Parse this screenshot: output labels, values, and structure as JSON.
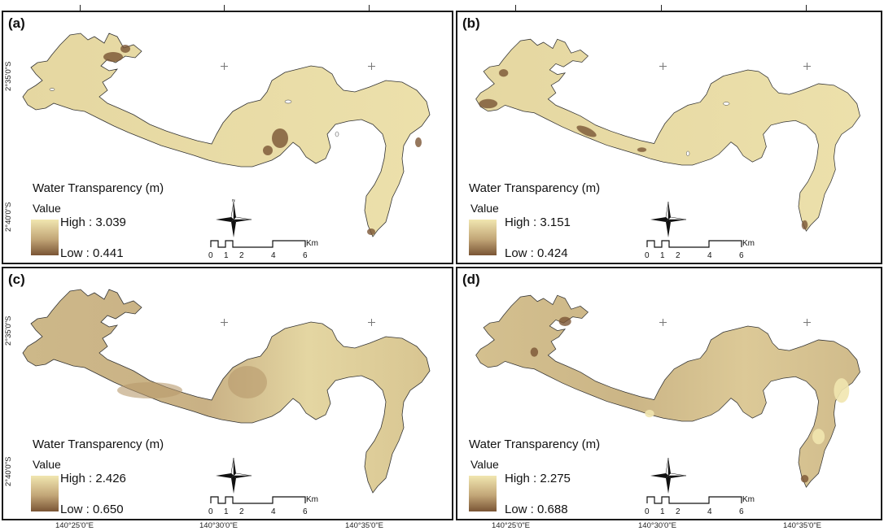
{
  "panels": [
    {
      "label": "(a)",
      "legend_title": "Water Transparency (m)",
      "value_label": "Value",
      "high": "High : 3.039",
      "low": "Low : 0.441"
    },
    {
      "label": "(b)",
      "legend_title": "Water Transparency (m)",
      "value_label": "Value",
      "high": "High : 3.151",
      "low": "Low : 0.424"
    },
    {
      "label": "(c)",
      "legend_title": "Water Transparency (m)",
      "value_label": "Value",
      "high": "High : 2.426",
      "low": "Low : 0.650"
    },
    {
      "label": "(d)",
      "legend_title": "Water Transparency (m)",
      "value_label": "Value",
      "high": "High : 2.275",
      "low": "Low : 0.688"
    }
  ],
  "scale": {
    "unit": "Km",
    "ticks": [
      "0",
      "1",
      "2",
      "4",
      "6"
    ]
  },
  "compass": {
    "n": "N",
    "s": "S",
    "e": "E",
    "w": "W"
  },
  "axes": {
    "lon": [
      "140°25'0\"E",
      "140°30'0\"E",
      "140°35'0\"E"
    ],
    "lat": [
      "2°35'0\"S",
      "2°40'0\"S"
    ]
  },
  "colors": {
    "high": "#f1e6b0",
    "low": "#7a5535",
    "lake_a": "#e7dba4",
    "lake_c": "#d9c996"
  }
}
